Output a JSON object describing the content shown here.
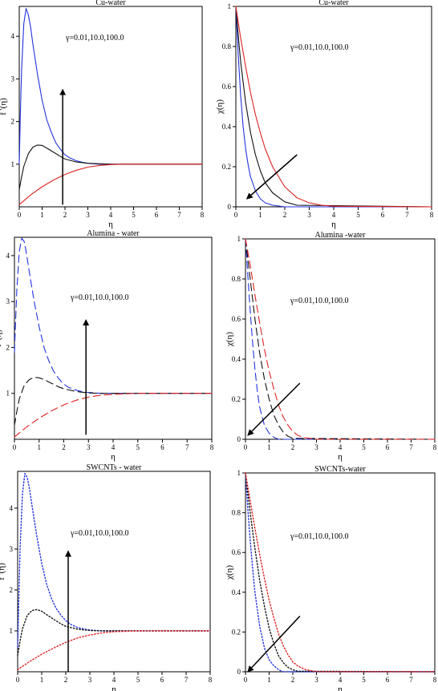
{
  "chart_data": [
    {
      "type": "line",
      "title": "Cu-water",
      "xlabel": "η",
      "ylabel": "f '(η)",
      "annotation": "γ=0.01,10.0,100.0",
      "line_style": "solid",
      "xlim": [
        0,
        8
      ],
      "ylim": [
        0,
        4.7
      ],
      "xticks": [
        0,
        1,
        2,
        3,
        4,
        5,
        6,
        7,
        8
      ],
      "yticks": [
        1,
        2,
        3,
        4
      ],
      "arrow": {
        "from": [
          1.9,
          0.05
        ],
        "to": [
          1.9,
          2.75
        ]
      },
      "series": [
        {
          "color": "#2233dd",
          "x": [
            0,
            0.05,
            0.1,
            0.2,
            0.3,
            0.4,
            0.5,
            0.6,
            0.8,
            1.0,
            1.2,
            1.4,
            1.6,
            1.8,
            2.0,
            2.2,
            2.5,
            2.8,
            3.0,
            3.5,
            4.0,
            5.0,
            6.0,
            8.0
          ],
          "y": [
            1.0,
            2.2,
            3.2,
            4.3,
            4.65,
            4.5,
            4.2,
            3.8,
            3.1,
            2.5,
            2.05,
            1.75,
            1.5,
            1.35,
            1.22,
            1.15,
            1.08,
            1.04,
            1.02,
            1.0,
            1.0,
            1.0,
            1.0,
            1.0
          ]
        },
        {
          "color": "#111111",
          "x": [
            0,
            0.1,
            0.2,
            0.4,
            0.6,
            0.8,
            1.0,
            1.2,
            1.5,
            1.8,
            2.0,
            2.5,
            3.0,
            3.5,
            4.0,
            5.0,
            6.0,
            8.0
          ],
          "y": [
            0.4,
            0.7,
            0.95,
            1.25,
            1.4,
            1.45,
            1.44,
            1.38,
            1.28,
            1.18,
            1.12,
            1.05,
            1.02,
            1.01,
            1.0,
            1.0,
            1.0,
            1.0
          ]
        },
        {
          "color": "#dd2222",
          "x": [
            0,
            0.5,
            1.0,
            1.5,
            2.0,
            2.5,
            3.0,
            3.5,
            4.0,
            4.5,
            5.0,
            6.0,
            8.0
          ],
          "y": [
            0.05,
            0.28,
            0.47,
            0.63,
            0.76,
            0.86,
            0.93,
            0.97,
            0.99,
            1.0,
            1.0,
            1.0,
            1.0
          ]
        }
      ]
    },
    {
      "type": "line",
      "title": "Cu-water",
      "xlabel": "η",
      "ylabel": "χ(η)",
      "annotation": "γ=0.01,10.0,100.0",
      "line_style": "solid",
      "xlim": [
        0,
        8
      ],
      "ylim": [
        0,
        1.0
      ],
      "xticks": [
        0,
        1,
        2,
        3,
        4,
        5,
        6,
        7,
        8
      ],
      "yticks": [
        0,
        0.2,
        0.4,
        0.6,
        0.8,
        1
      ],
      "arrow": {
        "from": [
          2.5,
          0.26
        ],
        "to": [
          0.45,
          0.04
        ]
      },
      "series": [
        {
          "color": "#2233dd",
          "x": [
            0,
            0.1,
            0.2,
            0.3,
            0.4,
            0.5,
            0.6,
            0.8,
            1.0,
            1.2,
            1.5,
            2.0,
            8.0
          ],
          "y": [
            1.0,
            0.75,
            0.55,
            0.4,
            0.29,
            0.21,
            0.15,
            0.08,
            0.04,
            0.02,
            0.008,
            0.0,
            0.0
          ]
        },
        {
          "color": "#111111",
          "x": [
            0,
            0.1,
            0.2,
            0.4,
            0.6,
            0.8,
            1.0,
            1.2,
            1.5,
            2.0,
            2.5,
            8.0
          ],
          "y": [
            1.0,
            0.85,
            0.72,
            0.52,
            0.37,
            0.26,
            0.18,
            0.12,
            0.07,
            0.025,
            0.008,
            0.0
          ]
        },
        {
          "color": "#dd2222",
          "x": [
            0,
            0.2,
            0.4,
            0.6,
            0.8,
            1.0,
            1.2,
            1.5,
            2.0,
            2.5,
            3.0,
            3.5,
            4.0,
            8.0
          ],
          "y": [
            1.0,
            0.84,
            0.7,
            0.57,
            0.46,
            0.37,
            0.29,
            0.2,
            0.1,
            0.045,
            0.02,
            0.008,
            0.003,
            0.0
          ]
        }
      ]
    },
    {
      "type": "line",
      "title": "Alumina - water",
      "xlabel": "η",
      "ylabel": "f '(η)",
      "annotation": "γ=0.01,10.0,100.0",
      "line_style": "dashed",
      "xlim": [
        0,
        8
      ],
      "ylim": [
        0,
        4.4
      ],
      "xticks": [
        0,
        1,
        2,
        3,
        4,
        5,
        6,
        7,
        8
      ],
      "yticks": [
        1,
        2,
        3,
        4
      ],
      "arrow": {
        "from": [
          2.9,
          0.1
        ],
        "to": [
          2.9,
          2.6
        ]
      },
      "series": [
        {
          "color": "#2233dd",
          "x": [
            0,
            0.05,
            0.1,
            0.2,
            0.3,
            0.4,
            0.5,
            0.6,
            0.8,
            1.0,
            1.2,
            1.4,
            1.6,
            1.8,
            2.0,
            2.2,
            2.5,
            2.8,
            3.0,
            3.5,
            4.0,
            5.0,
            6.0,
            8.0
          ],
          "y": [
            1.9,
            2.6,
            3.3,
            4.1,
            4.38,
            4.3,
            4.0,
            3.65,
            3.0,
            2.45,
            2.0,
            1.7,
            1.47,
            1.32,
            1.2,
            1.13,
            1.07,
            1.03,
            1.02,
            1.0,
            1.0,
            1.0,
            1.0,
            1.0
          ]
        },
        {
          "color": "#111111",
          "x": [
            0,
            0.1,
            0.2,
            0.4,
            0.6,
            0.8,
            1.0,
            1.2,
            1.5,
            1.8,
            2.0,
            2.5,
            3.0,
            3.5,
            4.0,
            5.0,
            6.0,
            8.0
          ],
          "y": [
            0.3,
            0.62,
            0.88,
            1.18,
            1.3,
            1.35,
            1.34,
            1.3,
            1.22,
            1.14,
            1.1,
            1.04,
            1.01,
            1.0,
            1.0,
            1.0,
            1.0,
            1.0
          ]
        },
        {
          "color": "#dd2222",
          "x": [
            0,
            0.5,
            1.0,
            1.5,
            2.0,
            2.5,
            3.0,
            3.5,
            4.0,
            4.5,
            5.0,
            6.0,
            8.0
          ],
          "y": [
            0.05,
            0.27,
            0.46,
            0.62,
            0.75,
            0.85,
            0.92,
            0.96,
            0.98,
            0.99,
            1.0,
            1.0,
            1.0
          ]
        }
      ]
    },
    {
      "type": "line",
      "title": "Alumina -water",
      "xlabel": "η",
      "ylabel": "χ(η)",
      "annotation": "γ=0.01,10.0,100.0",
      "line_style": "dashed",
      "xlim": [
        0,
        8
      ],
      "ylim": [
        0,
        1.0
      ],
      "xticks": [
        0,
        1,
        2,
        3,
        4,
        5,
        6,
        7,
        8
      ],
      "yticks": [
        0,
        0.2,
        0.4,
        0.6,
        0.8,
        1
      ],
      "arrow": {
        "from": [
          2.3,
          0.28
        ],
        "to": [
          0.1,
          0.02
        ]
      },
      "series": [
        {
          "color": "#2233dd",
          "x": [
            0,
            0.1,
            0.2,
            0.3,
            0.4,
            0.5,
            0.6,
            0.8,
            1.0,
            1.2,
            1.4,
            8.0
          ],
          "y": [
            1.0,
            0.82,
            0.64,
            0.48,
            0.35,
            0.24,
            0.16,
            0.07,
            0.03,
            0.01,
            0.0,
            0.0
          ]
        },
        {
          "color": "#111111",
          "x": [
            0,
            0.2,
            0.4,
            0.6,
            0.8,
            1.0,
            1.2,
            1.4,
            1.6,
            1.8,
            2.0,
            8.0
          ],
          "y": [
            1.0,
            0.8,
            0.6,
            0.43,
            0.3,
            0.2,
            0.12,
            0.07,
            0.035,
            0.015,
            0.005,
            0.0
          ]
        },
        {
          "color": "#dd2222",
          "x": [
            0,
            0.2,
            0.4,
            0.6,
            0.8,
            1.0,
            1.2,
            1.4,
            1.6,
            1.8,
            2.0,
            2.2,
            2.5,
            3.0,
            8.0
          ],
          "y": [
            1.0,
            0.87,
            0.72,
            0.58,
            0.45,
            0.34,
            0.25,
            0.17,
            0.11,
            0.07,
            0.04,
            0.02,
            0.008,
            0.0,
            0.0
          ]
        }
      ]
    },
    {
      "type": "line",
      "title": "SWCNTs - water",
      "xlabel": "η",
      "ylabel": "f '(η)",
      "annotation": "γ=0.01,10.0,100.0",
      "line_style": "dotted",
      "xlim": [
        0,
        8
      ],
      "ylim": [
        0,
        4.9
      ],
      "xticks": [
        0,
        1,
        2,
        3,
        4,
        5,
        6,
        7,
        8
      ],
      "yticks": [
        1,
        2,
        3,
        4
      ],
      "arrow": {
        "from": [
          2.1,
          0.0
        ],
        "to": [
          2.1,
          2.95
        ]
      },
      "series": [
        {
          "color": "#2233dd",
          "x": [
            0,
            0.05,
            0.1,
            0.2,
            0.3,
            0.4,
            0.5,
            0.6,
            0.8,
            1.0,
            1.2,
            1.4,
            1.6,
            1.8,
            2.0,
            2.2,
            2.5,
            2.8,
            3.0,
            3.5,
            4.0,
            5.0,
            6.0,
            8.0
          ],
          "y": [
            0.6,
            1.8,
            3.0,
            4.35,
            4.85,
            4.75,
            4.45,
            4.05,
            3.3,
            2.65,
            2.15,
            1.8,
            1.55,
            1.38,
            1.25,
            1.16,
            1.08,
            1.04,
            1.02,
            1.0,
            1.0,
            1.0,
            1.0,
            1.0
          ]
        },
        {
          "color": "#111111",
          "x": [
            0,
            0.1,
            0.2,
            0.4,
            0.6,
            0.8,
            1.0,
            1.2,
            1.5,
            1.8,
            2.0,
            2.5,
            3.0,
            3.5,
            4.0,
            5.0,
            6.0,
            8.0
          ],
          "y": [
            0.4,
            0.75,
            1.05,
            1.38,
            1.5,
            1.52,
            1.48,
            1.4,
            1.28,
            1.17,
            1.11,
            1.04,
            1.01,
            1.0,
            1.0,
            1.0,
            1.0,
            1.0
          ]
        },
        {
          "color": "#dd2222",
          "x": [
            0,
            0.5,
            1.0,
            1.5,
            2.0,
            2.5,
            3.0,
            3.5,
            4.0,
            4.5,
            5.0,
            6.0,
            8.0
          ],
          "y": [
            0.05,
            0.25,
            0.43,
            0.58,
            0.72,
            0.83,
            0.9,
            0.95,
            0.98,
            0.99,
            1.0,
            1.0,
            1.0
          ]
        }
      ]
    },
    {
      "type": "line",
      "title": "SWCNTs-water",
      "xlabel": "η",
      "ylabel": "χ(η)",
      "annotation": "γ=0.01,10.0,100.0",
      "line_style": "dotted",
      "xlim": [
        0,
        8
      ],
      "ylim": [
        0,
        1.0
      ],
      "xticks": [
        0,
        1,
        2,
        3,
        4,
        5,
        6,
        7,
        8
      ],
      "yticks": [
        0,
        0.2,
        0.4,
        0.6,
        0.8,
        1
      ],
      "arrow": {
        "from": [
          2.3,
          0.28
        ],
        "to": [
          0.1,
          0.0
        ]
      },
      "series": [
        {
          "color": "#2233dd",
          "x": [
            0,
            0.1,
            0.2,
            0.3,
            0.4,
            0.6,
            0.8,
            1.0,
            1.2,
            1.4,
            1.6,
            8.0
          ],
          "y": [
            1.0,
            0.82,
            0.66,
            0.52,
            0.4,
            0.23,
            0.12,
            0.06,
            0.03,
            0.01,
            0.0,
            0.0
          ]
        },
        {
          "color": "#111111",
          "x": [
            0,
            0.2,
            0.4,
            0.6,
            0.8,
            1.0,
            1.2,
            1.4,
            1.6,
            1.8,
            2.0,
            2.2,
            8.0
          ],
          "y": [
            1.0,
            0.8,
            0.62,
            0.46,
            0.33,
            0.22,
            0.14,
            0.08,
            0.045,
            0.022,
            0.01,
            0.003,
            0.0
          ]
        },
        {
          "color": "#dd2222",
          "x": [
            0,
            0.2,
            0.4,
            0.6,
            0.8,
            1.0,
            1.2,
            1.4,
            1.6,
            1.8,
            2.0,
            2.2,
            2.5,
            3.0,
            8.0
          ],
          "y": [
            1.0,
            0.86,
            0.72,
            0.59,
            0.47,
            0.36,
            0.27,
            0.19,
            0.13,
            0.085,
            0.05,
            0.03,
            0.012,
            0.0,
            0.0
          ]
        }
      ]
    }
  ]
}
